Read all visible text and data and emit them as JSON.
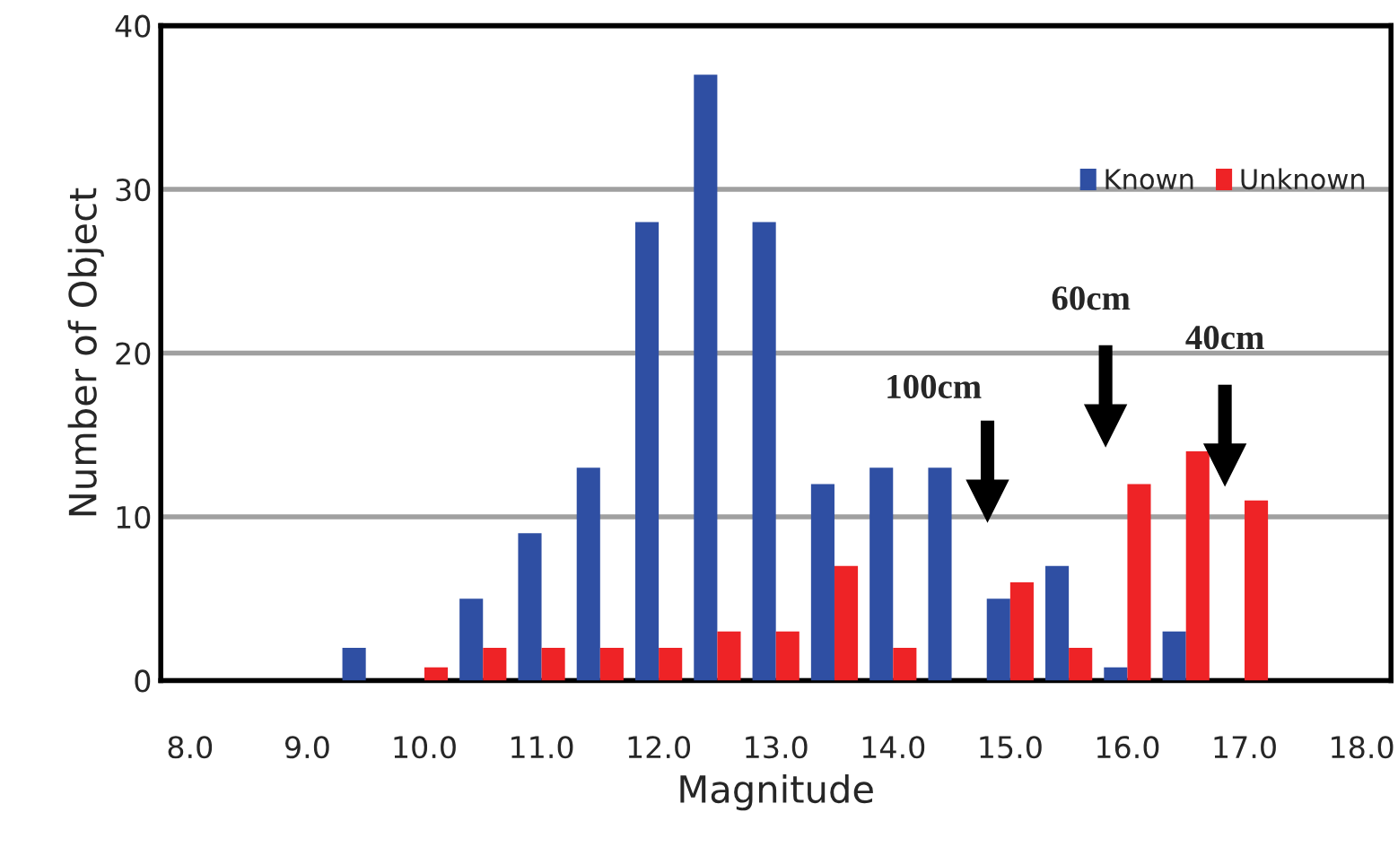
{
  "chart_data": {
    "type": "bar",
    "xlabel": "Magnitude",
    "ylabel": "Number of Object",
    "categories": [
      "8.0",
      null,
      "9.0",
      null,
      "10.0",
      null,
      "11.0",
      null,
      "12.0",
      null,
      "13.0",
      null,
      "14.0",
      null,
      "15.0",
      null,
      "16.0",
      null,
      "17.0",
      null,
      "18.0"
    ],
    "series": [
      {
        "name": "Known",
        "color": "#2f4fa3",
        "values": [
          0,
          0,
          0,
          2,
          0,
          5,
          9,
          13,
          28,
          37,
          28,
          12,
          13,
          13,
          5,
          7,
          0.8,
          3,
          0,
          0,
          0
        ]
      },
      {
        "name": "Unknown",
        "color": "#ee2326",
        "values": [
          0,
          0,
          0,
          0,
          0.8,
          2,
          2,
          2,
          2,
          3,
          3,
          7,
          2,
          0,
          6,
          2,
          12,
          14,
          11,
          0,
          0
        ]
      }
    ],
    "ylim": [
      0,
      40
    ],
    "yticks": [
      0,
      10,
      20,
      30,
      40
    ],
    "grid": "y",
    "legend": "top right",
    "annotations": [
      "100cm",
      "60cm",
      "40cm"
    ]
  }
}
